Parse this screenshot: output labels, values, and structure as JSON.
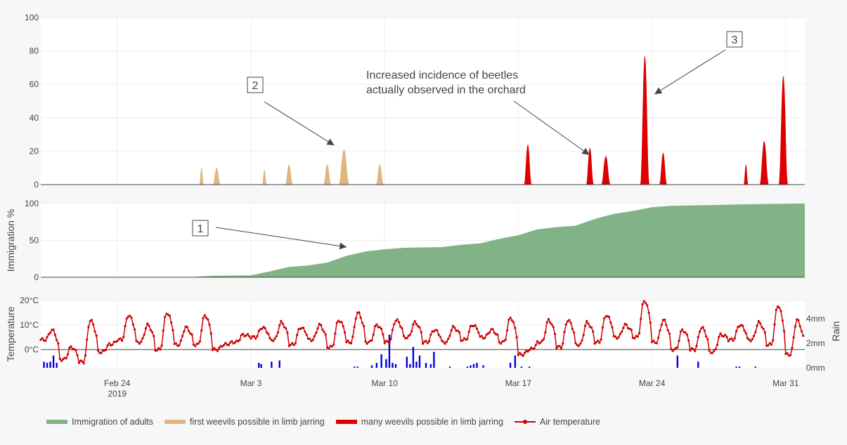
{
  "chart_data": [
    {
      "type": "area",
      "panel": "weevil risk",
      "ylim": [
        0,
        100
      ],
      "yticks": [
        "0",
        "20",
        "40",
        "60",
        "80",
        "100"
      ],
      "series": [
        {
          "name": "first weevils possible in limb jarring",
          "color": "#deb67f",
          "peaks": [
            {
              "date": "2019-02-28T10:00",
              "half_width_hours": 3,
              "value": 10
            },
            {
              "date": "2019-03-01T05:00",
              "half_width_hours": 5,
              "value": 10
            },
            {
              "date": "2019-03-03T17:00",
              "half_width_hours": 3,
              "value": 9
            },
            {
              "date": "2019-03-05T00:00",
              "half_width_hours": 5,
              "value": 12
            },
            {
              "date": "2019-03-07T00:00",
              "half_width_hours": 5,
              "value": 12
            },
            {
              "date": "2019-03-07T21:00",
              "half_width_hours": 7,
              "value": 21
            },
            {
              "date": "2019-03-09T18:00",
              "half_width_hours": 5,
              "value": 12
            }
          ]
        },
        {
          "name": "many weevils possible in limb jarring",
          "color": "#dd0000",
          "peaks": [
            {
              "date": "2019-03-17T12:00",
              "half_width_hours": 5,
              "value": 24
            },
            {
              "date": "2019-03-20T18:00",
              "half_width_hours": 5,
              "value": 22
            },
            {
              "date": "2019-03-21T14:00",
              "half_width_hours": 6,
              "value": 17
            },
            {
              "date": "2019-03-23T15:00",
              "half_width_hours": 6,
              "value": 77
            },
            {
              "date": "2019-03-24T14:00",
              "half_width_hours": 5,
              "value": 19
            },
            {
              "date": "2019-03-28T22:00",
              "half_width_hours": 3,
              "value": 12
            },
            {
              "date": "2019-03-29T21:00",
              "half_width_hours": 6,
              "value": 26
            },
            {
              "date": "2019-03-30T21:00",
              "half_width_hours": 6,
              "value": 65
            }
          ]
        }
      ],
      "annotations": [
        {
          "label": "2",
          "target_date": "2019-03-07T14:00",
          "target_value": 21
        },
        {
          "label": "Increased incidence of beetles\nactually observed in the orchard",
          "target_date": "2019-03-20T12:00",
          "target_value": 22
        },
        {
          "label": "3",
          "target_date": "2019-03-24T12:00",
          "target_value": 55
        }
      ]
    },
    {
      "type": "area",
      "panel": "immigration",
      "ylabel": "Immigration %",
      "ylim": [
        0,
        100
      ],
      "yticks": [
        "0",
        "50",
        "100"
      ],
      "series": [
        {
          "name": "Immigration of adults",
          "color": "#82b386",
          "x": [
            "2019-02-20",
            "2019-02-26",
            "2019-02-28",
            "2019-03-01",
            "2019-03-03",
            "2019-03-04",
            "2019-03-05",
            "2019-03-06",
            "2019-03-07",
            "2019-03-08",
            "2019-03-09",
            "2019-03-10",
            "2019-03-11",
            "2019-03-13",
            "2019-03-14",
            "2019-03-15",
            "2019-03-16",
            "2019-03-17",
            "2019-03-18",
            "2019-03-19",
            "2019-03-20",
            "2019-03-21",
            "2019-03-22",
            "2019-03-23",
            "2019-03-24",
            "2019-03-25",
            "2019-03-27",
            "2019-03-29",
            "2019-04-01"
          ],
          "values": [
            0,
            0,
            0.5,
            2,
            2.5,
            8,
            14,
            16,
            20,
            29,
            35,
            38,
            40,
            41,
            44,
            46,
            52,
            57,
            65,
            68,
            70,
            79,
            86,
            90,
            95,
            97,
            98,
            99,
            100
          ]
        }
      ],
      "annotations": [
        {
          "label": "1",
          "target_date": "2019-03-07T12:00",
          "target_value": 41
        }
      ]
    },
    {
      "type": "line",
      "panel": "weather",
      "ylabel": "Temperature",
      "y2label": "Rain",
      "ylim": [
        -8,
        22
      ],
      "yticks": [
        "0°C",
        "10°C",
        "20°C"
      ],
      "y2ticks": [
        "0mm",
        "2mm",
        "4mm"
      ],
      "y2lim": [
        0,
        7.5
      ],
      "xlim": [
        "2019-02-20",
        "2019-04-01"
      ],
      "xticks": [
        {
          "label": "Feb 24",
          "sub": "2019",
          "date": "2019-02-24"
        },
        {
          "label": "Mar 3",
          "date": "2019-03-03"
        },
        {
          "label": "Mar 10",
          "date": "2019-03-10"
        },
        {
          "label": "Mar 17",
          "date": "2019-03-17"
        },
        {
          "label": "Mar 24",
          "date": "2019-03-24"
        },
        {
          "label": "Mar 31",
          "date": "2019-03-31"
        }
      ],
      "series": [
        {
          "name": "Air temperature",
          "color": "#cc0000",
          "daily_max_c": [
            8,
            1,
            12,
            2,
            14,
            10,
            15,
            9,
            14,
            2,
            6,
            9,
            11,
            9,
            10,
            12,
            15,
            10,
            12,
            11,
            8,
            9,
            10,
            8,
            13,
            0,
            12,
            12,
            11,
            14,
            10,
            20,
            12,
            8,
            9,
            6,
            10,
            11,
            18,
            12
          ],
          "daily_min_c": [
            4,
            -4,
            -5,
            -1,
            4,
            3,
            0,
            2,
            2,
            0,
            3,
            5,
            4,
            2,
            4,
            1,
            3,
            3,
            3,
            5,
            3,
            3,
            4,
            5,
            3,
            -2,
            3,
            1,
            2,
            3,
            5,
            5,
            3,
            0,
            0,
            -1,
            4,
            4,
            2,
            -2
          ]
        },
        {
          "name": "Rain",
          "color": "#0000dd",
          "unit": "mm",
          "bars": [
            {
              "date": "2019-02-20T04:00",
              "v": 0.5
            },
            {
              "date": "2019-02-20T08:00",
              "v": 0.4
            },
            {
              "date": "2019-02-20T12:00",
              "v": 0.5
            },
            {
              "date": "2019-02-20T16:00",
              "v": 1.0
            },
            {
              "date": "2019-02-20T20:00",
              "v": 0.4
            },
            {
              "date": "2019-03-03T10:00",
              "v": 0.4
            },
            {
              "date": "2019-03-03T13:00",
              "v": 0.3
            },
            {
              "date": "2019-03-04T02:00",
              "v": 0.5
            },
            {
              "date": "2019-03-04T12:00",
              "v": 0.6
            },
            {
              "date": "2019-03-08T10:00",
              "v": 0.1
            },
            {
              "date": "2019-03-08T14:00",
              "v": 0.1
            },
            {
              "date": "2019-03-09T08:00",
              "v": 0.2
            },
            {
              "date": "2019-03-09T14:00",
              "v": 0.4
            },
            {
              "date": "2019-03-09T20:00",
              "v": 1.1
            },
            {
              "date": "2019-03-10T02:00",
              "v": 0.7
            },
            {
              "date": "2019-03-10T06:00",
              "v": 2.7
            },
            {
              "date": "2019-03-10T10:00",
              "v": 0.4
            },
            {
              "date": "2019-03-10T14:00",
              "v": 0.3
            },
            {
              "date": "2019-03-11T04:00",
              "v": 0.9
            },
            {
              "date": "2019-03-11T08:00",
              "v": 0.3
            },
            {
              "date": "2019-03-11T12:00",
              "v": 1.7
            },
            {
              "date": "2019-03-11T16:00",
              "v": 0.5
            },
            {
              "date": "2019-03-11T20:00",
              "v": 1.0
            },
            {
              "date": "2019-03-12T04:00",
              "v": 0.4
            },
            {
              "date": "2019-03-12T10:00",
              "v": 0.3
            },
            {
              "date": "2019-03-12T14:00",
              "v": 1.3
            },
            {
              "date": "2019-03-13T10:00",
              "v": 0.1
            },
            {
              "date": "2019-03-14T08:00",
              "v": 0.1
            },
            {
              "date": "2019-03-14T12:00",
              "v": 0.2
            },
            {
              "date": "2019-03-14T16:00",
              "v": 0.3
            },
            {
              "date": "2019-03-14T20:00",
              "v": 0.4
            },
            {
              "date": "2019-03-15T04:00",
              "v": 0.2
            },
            {
              "date": "2019-03-16T14:00",
              "v": 0.4
            },
            {
              "date": "2019-03-16T20:00",
              "v": 1.0
            },
            {
              "date": "2019-03-17T04:00",
              "v": 0.1
            },
            {
              "date": "2019-03-17T14:00",
              "v": 0.1
            },
            {
              "date": "2019-03-25T08:00",
              "v": 1.0
            },
            {
              "date": "2019-03-26T10:00",
              "v": 0.5
            },
            {
              "date": "2019-03-28T10:00",
              "v": 0.1
            },
            {
              "date": "2019-03-28T14:00",
              "v": 0.1
            },
            {
              "date": "2019-03-29T10:00",
              "v": 0.1
            }
          ]
        }
      ]
    }
  ],
  "legend": [
    {
      "label": "Immigration of adults",
      "color": "#82b386",
      "style": "area"
    },
    {
      "label": "first weevils possible in limb jarring",
      "color": "#deb67f",
      "style": "area"
    },
    {
      "label": "many weevils possible in limb jarring",
      "color": "#dd0000",
      "style": "area"
    },
    {
      "label": "Air temperature",
      "color": "#cc0000",
      "style": "line-marker"
    }
  ]
}
